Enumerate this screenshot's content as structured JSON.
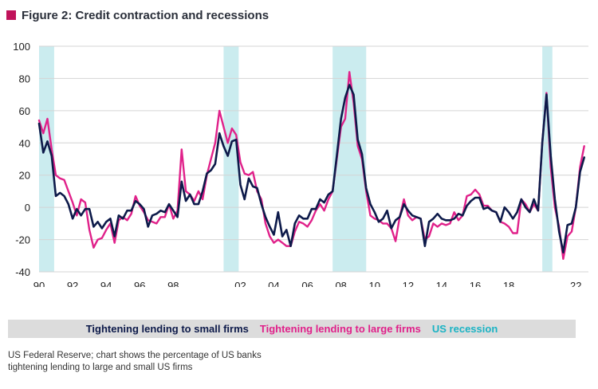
{
  "figure": {
    "title": "Figure 2: Credit contraction and recessions",
    "source_note": "US Federal Reserve; chart shows the percentage of US banks tightening lending to large and small US firms"
  },
  "colors": {
    "small_firms": "#0d1a4a",
    "large_firms": "#e0218a",
    "recession": "#cbecef",
    "title_square": "#c0125a",
    "grid": "#d4d4d4"
  },
  "chart_data": {
    "type": "line",
    "title": "Figure 2: Credit contraction and recessions",
    "xlabel": "",
    "ylabel": "",
    "xlim": [
      1990,
      2022.75
    ],
    "ylim": [
      -40,
      100
    ],
    "yticks": [
      -40,
      -20,
      0,
      20,
      40,
      60,
      80,
      100
    ],
    "xticks": [
      1990,
      1992,
      1994,
      1996,
      1998,
      2002,
      2004,
      2006,
      2008,
      2010,
      2012,
      2014,
      2016,
      2018,
      2022
    ],
    "xtick_labels": [
      "90",
      "92",
      "94",
      "96",
      "98",
      "02",
      "04",
      "06",
      "08",
      "10",
      "12",
      "14",
      "16",
      "18",
      "22"
    ],
    "grid": "horizontal",
    "legend_position": "bottom",
    "recessions": [
      [
        1990.0,
        1990.9
      ],
      [
        2001.0,
        2001.9
      ],
      [
        2007.5,
        2009.5
      ],
      [
        2020.0,
        2020.6
      ]
    ],
    "series": [
      {
        "name": "Tightening lending to small firms",
        "color": "#0d1a4a",
        "points": [
          [
            1990.0,
            52
          ],
          [
            1990.25,
            34
          ],
          [
            1990.5,
            41
          ],
          [
            1990.75,
            32
          ],
          [
            1991.0,
            7
          ],
          [
            1991.25,
            9
          ],
          [
            1991.5,
            7
          ],
          [
            1991.75,
            2
          ],
          [
            1992.0,
            -7
          ],
          [
            1992.25,
            -1
          ],
          [
            1992.5,
            -5
          ],
          [
            1992.75,
            -1
          ],
          [
            1993.0,
            -1
          ],
          [
            1993.25,
            -12
          ],
          [
            1993.5,
            -9
          ],
          [
            1993.75,
            -13
          ],
          [
            1994.0,
            -9
          ],
          [
            1994.25,
            -7
          ],
          [
            1994.5,
            -18
          ],
          [
            1994.75,
            -5
          ],
          [
            1995.0,
            -7
          ],
          [
            1995.25,
            -2
          ],
          [
            1995.5,
            -2
          ],
          [
            1995.75,
            4
          ],
          [
            1996.0,
            2
          ],
          [
            1996.25,
            -1
          ],
          [
            1996.5,
            -12
          ],
          [
            1996.75,
            -5
          ],
          [
            1997.0,
            -4
          ],
          [
            1997.25,
            -2
          ],
          [
            1997.5,
            -3
          ],
          [
            1997.75,
            2
          ],
          [
            1998.0,
            -2
          ],
          [
            1998.25,
            -6
          ],
          [
            1998.5,
            16
          ],
          [
            1998.75,
            4
          ],
          [
            1999.0,
            8
          ],
          [
            1999.25,
            2
          ],
          [
            1999.5,
            2
          ],
          [
            1999.75,
            10
          ],
          [
            2000.0,
            21
          ],
          [
            2000.25,
            23
          ],
          [
            2000.5,
            27
          ],
          [
            2000.75,
            46
          ],
          [
            2001.0,
            38
          ],
          [
            2001.25,
            32
          ],
          [
            2001.5,
            41
          ],
          [
            2001.75,
            42
          ],
          [
            2002.0,
            14
          ],
          [
            2002.25,
            5
          ],
          [
            2002.5,
            18
          ],
          [
            2002.75,
            13
          ],
          [
            2003.0,
            12
          ],
          [
            2003.25,
            2
          ],
          [
            2003.5,
            -6
          ],
          [
            2003.75,
            -12
          ],
          [
            2004.0,
            -17
          ],
          [
            2004.25,
            -3
          ],
          [
            2004.5,
            -18
          ],
          [
            2004.75,
            -14
          ],
          [
            2005.0,
            -24
          ],
          [
            2005.25,
            -10
          ],
          [
            2005.5,
            -5
          ],
          [
            2005.75,
            -7
          ],
          [
            2006.0,
            -7
          ],
          [
            2006.25,
            -1
          ],
          [
            2006.5,
            -1
          ],
          [
            2006.75,
            5
          ],
          [
            2007.0,
            3
          ],
          [
            2007.25,
            8
          ],
          [
            2007.5,
            10
          ],
          [
            2007.75,
            32
          ],
          [
            2008.0,
            55
          ],
          [
            2008.25,
            68
          ],
          [
            2008.5,
            76
          ],
          [
            2008.75,
            70
          ],
          [
            2009.0,
            42
          ],
          [
            2009.25,
            33
          ],
          [
            2009.5,
            12
          ],
          [
            2009.75,
            2
          ],
          [
            2010.0,
            -3
          ],
          [
            2010.25,
            -9
          ],
          [
            2010.5,
            -7
          ],
          [
            2010.75,
            -2
          ],
          [
            2011.0,
            -13
          ],
          [
            2011.25,
            -8
          ],
          [
            2011.5,
            -6
          ],
          [
            2011.75,
            2
          ],
          [
            2012.0,
            -2
          ],
          [
            2012.25,
            -5
          ],
          [
            2012.5,
            -6
          ],
          [
            2012.75,
            -7
          ],
          [
            2013.0,
            -24
          ],
          [
            2013.25,
            -9
          ],
          [
            2013.5,
            -7
          ],
          [
            2013.75,
            -4
          ],
          [
            2014.0,
            -7
          ],
          [
            2014.25,
            -8
          ],
          [
            2014.5,
            -8
          ],
          [
            2014.75,
            -7
          ],
          [
            2015.0,
            -4
          ],
          [
            2015.25,
            -5
          ],
          [
            2015.5,
            1
          ],
          [
            2015.75,
            4
          ],
          [
            2016.0,
            6
          ],
          [
            2016.25,
            6
          ],
          [
            2016.5,
            -1
          ],
          [
            2016.75,
            0
          ],
          [
            2017.0,
            -2
          ],
          [
            2017.25,
            -3
          ],
          [
            2017.5,
            -9
          ],
          [
            2017.75,
            0
          ],
          [
            2018.0,
            -3
          ],
          [
            2018.25,
            -7
          ],
          [
            2018.5,
            -3
          ],
          [
            2018.75,
            5
          ],
          [
            2019.0,
            0
          ],
          [
            2019.25,
            -3
          ],
          [
            2019.5,
            5
          ],
          [
            2019.75,
            -2
          ],
          [
            2020.0,
            40
          ],
          [
            2020.25,
            70
          ],
          [
            2020.5,
            32
          ],
          [
            2020.75,
            5
          ],
          [
            2021.0,
            -15
          ],
          [
            2021.25,
            -28
          ],
          [
            2021.5,
            -11
          ],
          [
            2021.75,
            -10
          ],
          [
            2022.0,
            0
          ],
          [
            2022.25,
            22
          ],
          [
            2022.5,
            31
          ]
        ]
      },
      {
        "name": "Tightening lending to large firms",
        "color": "#e0218a",
        "points": [
          [
            1990.0,
            54
          ],
          [
            1990.25,
            46
          ],
          [
            1990.5,
            55
          ],
          [
            1990.75,
            36
          ],
          [
            1991.0,
            20
          ],
          [
            1991.25,
            18
          ],
          [
            1991.5,
            17
          ],
          [
            1991.75,
            10
          ],
          [
            1992.0,
            3
          ],
          [
            1992.25,
            -5
          ],
          [
            1992.5,
            5
          ],
          [
            1992.75,
            3
          ],
          [
            1993.0,
            -14
          ],
          [
            1993.25,
            -25
          ],
          [
            1993.5,
            -20
          ],
          [
            1993.75,
            -19
          ],
          [
            1994.0,
            -14
          ],
          [
            1994.25,
            -10
          ],
          [
            1994.5,
            -22
          ],
          [
            1994.75,
            -8
          ],
          [
            1995.0,
            -6
          ],
          [
            1995.25,
            -8
          ],
          [
            1995.5,
            -4
          ],
          [
            1995.75,
            7
          ],
          [
            1996.0,
            1
          ],
          [
            1996.25,
            -3
          ],
          [
            1996.5,
            -8
          ],
          [
            1996.75,
            -9
          ],
          [
            1997.0,
            -10
          ],
          [
            1997.25,
            -6
          ],
          [
            1997.5,
            -6
          ],
          [
            1997.75,
            2
          ],
          [
            1998.0,
            -7
          ],
          [
            1998.25,
            -2
          ],
          [
            1998.5,
            36
          ],
          [
            1998.75,
            10
          ],
          [
            1999.0,
            8
          ],
          [
            1999.25,
            4
          ],
          [
            1999.5,
            10
          ],
          [
            1999.75,
            5
          ],
          [
            2000.0,
            20
          ],
          [
            2000.25,
            30
          ],
          [
            2000.5,
            40
          ],
          [
            2000.75,
            60
          ],
          [
            2001.0,
            50
          ],
          [
            2001.25,
            40
          ],
          [
            2001.5,
            49
          ],
          [
            2001.75,
            45
          ],
          [
            2002.0,
            28
          ],
          [
            2002.25,
            21
          ],
          [
            2002.5,
            20
          ],
          [
            2002.75,
            22
          ],
          [
            2003.0,
            10
          ],
          [
            2003.25,
            5
          ],
          [
            2003.5,
            -10
          ],
          [
            2003.75,
            -18
          ],
          [
            2004.0,
            -22
          ],
          [
            2004.25,
            -20
          ],
          [
            2004.5,
            -22
          ],
          [
            2004.75,
            -24
          ],
          [
            2005.0,
            -24
          ],
          [
            2005.25,
            -15
          ],
          [
            2005.5,
            -9
          ],
          [
            2005.75,
            -10
          ],
          [
            2006.0,
            -12
          ],
          [
            2006.25,
            -8
          ],
          [
            2006.5,
            -2
          ],
          [
            2006.75,
            2
          ],
          [
            2007.0,
            -2
          ],
          [
            2007.25,
            5
          ],
          [
            2007.5,
            10
          ],
          [
            2007.75,
            30
          ],
          [
            2008.0,
            50
          ],
          [
            2008.25,
            55
          ],
          [
            2008.5,
            84
          ],
          [
            2008.75,
            65
          ],
          [
            2009.0,
            38
          ],
          [
            2009.25,
            30
          ],
          [
            2009.5,
            10
          ],
          [
            2009.75,
            -5
          ],
          [
            2010.0,
            -7
          ],
          [
            2010.25,
            -8
          ],
          [
            2010.5,
            -10
          ],
          [
            2010.75,
            -10
          ],
          [
            2011.0,
            -13
          ],
          [
            2011.25,
            -21
          ],
          [
            2011.5,
            -6
          ],
          [
            2011.75,
            5
          ],
          [
            2012.0,
            -5
          ],
          [
            2012.25,
            -8
          ],
          [
            2012.5,
            -6
          ],
          [
            2012.75,
            -7
          ],
          [
            2013.0,
            -20
          ],
          [
            2013.25,
            -18
          ],
          [
            2013.5,
            -10
          ],
          [
            2013.75,
            -12
          ],
          [
            2014.0,
            -10
          ],
          [
            2014.25,
            -11
          ],
          [
            2014.5,
            -10
          ],
          [
            2014.75,
            -3
          ],
          [
            2015.0,
            -8
          ],
          [
            2015.25,
            -5
          ],
          [
            2015.5,
            7
          ],
          [
            2015.75,
            8
          ],
          [
            2016.0,
            11
          ],
          [
            2016.25,
            8
          ],
          [
            2016.5,
            1
          ],
          [
            2016.75,
            1
          ],
          [
            2017.0,
            -2
          ],
          [
            2017.25,
            -3
          ],
          [
            2017.5,
            -9
          ],
          [
            2017.75,
            -10
          ],
          [
            2018.0,
            -12
          ],
          [
            2018.25,
            -16
          ],
          [
            2018.5,
            -16
          ],
          [
            2018.75,
            5
          ],
          [
            2019.0,
            2
          ],
          [
            2019.25,
            -3
          ],
          [
            2019.5,
            2
          ],
          [
            2019.75,
            -2
          ],
          [
            2020.0,
            40
          ],
          [
            2020.25,
            71
          ],
          [
            2020.5,
            25
          ],
          [
            2020.75,
            0
          ],
          [
            2021.0,
            -12
          ],
          [
            2021.25,
            -32
          ],
          [
            2021.5,
            -18
          ],
          [
            2021.75,
            -15
          ],
          [
            2022.0,
            0
          ],
          [
            2022.25,
            25
          ],
          [
            2022.5,
            38
          ]
        ]
      }
    ],
    "legend": [
      {
        "label": "Tightening lending to small firms",
        "color": "#0d1a4a"
      },
      {
        "label": "Tightening lending to large firms",
        "color": "#e0218a"
      },
      {
        "label": "US recession",
        "color": "#1ab3c4"
      }
    ]
  }
}
